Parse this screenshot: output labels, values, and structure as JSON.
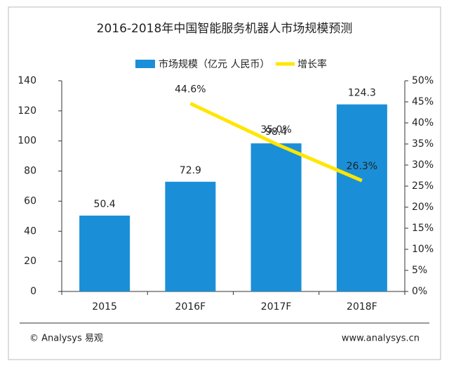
{
  "chart_data": {
    "type": "bar_line",
    "title": "2016-2018年中国智能服务机器人市场规模预测",
    "categories": [
      "2015",
      "2016F",
      "2017F",
      "2018F"
    ],
    "series": [
      {
        "name": "市场规模（亿元 人民币）",
        "type": "bar",
        "color": "#1a8fd8",
        "values": [
          50.4,
          72.9,
          98.4,
          124.3
        ]
      },
      {
        "name": "增长率",
        "type": "line",
        "axis": "y2",
        "color": "#ffe600",
        "values": [
          null,
          44.6,
          35.0,
          26.3
        ],
        "value_labels": [
          null,
          "44.6%",
          "35.0%",
          "26.3%"
        ]
      }
    ],
    "ylim": [
      0,
      140
    ],
    "yticks": [
      0,
      20,
      40,
      60,
      80,
      100,
      120,
      140
    ],
    "y2lim": [
      0,
      50
    ],
    "y2ticks": [
      {
        "value": 0,
        "label": "0%"
      },
      {
        "value": 5,
        "label": "5%"
      },
      {
        "value": 10,
        "label": "10%"
      },
      {
        "value": 15,
        "label": "15%"
      },
      {
        "value": 20,
        "label": "20%"
      },
      {
        "value": 25,
        "label": "25%"
      },
      {
        "value": 30,
        "label": "30%"
      },
      {
        "value": 35,
        "label": "35%"
      },
      {
        "value": 40,
        "label": "40%"
      },
      {
        "value": 45,
        "label": "45%"
      },
      {
        "value": 50,
        "label": "50%"
      }
    ],
    "footer_left": "© Analysys 易观",
    "footer_right": "www.analysys.cn"
  }
}
